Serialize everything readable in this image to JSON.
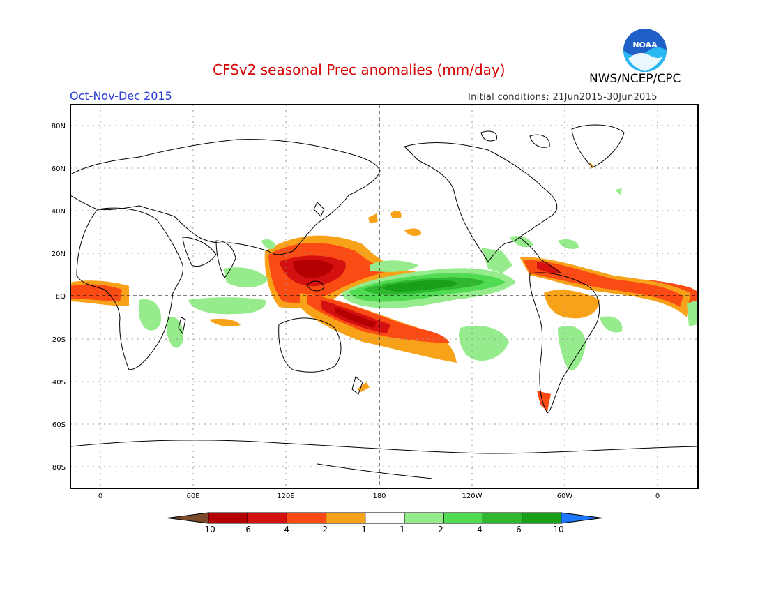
{
  "header": {
    "title": "CFSv2 seasonal Prec anomalies (mm/day)",
    "agency": "NWS/NCEP/CPC",
    "period": "Oct-Nov-Dec 2015",
    "initial_conditions": "Initial conditions: 21Jun2015-30Jun2015",
    "logo_text": "NOAA"
  },
  "map": {
    "lat_labels": [
      "80N",
      "60N",
      "40N",
      "20N",
      "EQ",
      "20S",
      "40S",
      "60S",
      "80S"
    ],
    "lon_labels": [
      "0",
      "60E",
      "120E",
      "180",
      "120W",
      "60W",
      "0"
    ],
    "grid": "dotted",
    "reference_lines": [
      "EQ",
      "180"
    ]
  },
  "colorbar": {
    "labels": [
      "-10",
      "-6",
      "-4",
      "-2",
      "-1",
      "1",
      "2",
      "4",
      "6",
      "10"
    ],
    "colors": [
      "#7a4a2a",
      "#b40000",
      "#d41010",
      "#fa4b14",
      "#f8a21a",
      "#ffffff",
      "#96ec8c",
      "#50db52",
      "#2fb82f",
      "#18a018",
      "#1e78ff"
    ]
  }
}
